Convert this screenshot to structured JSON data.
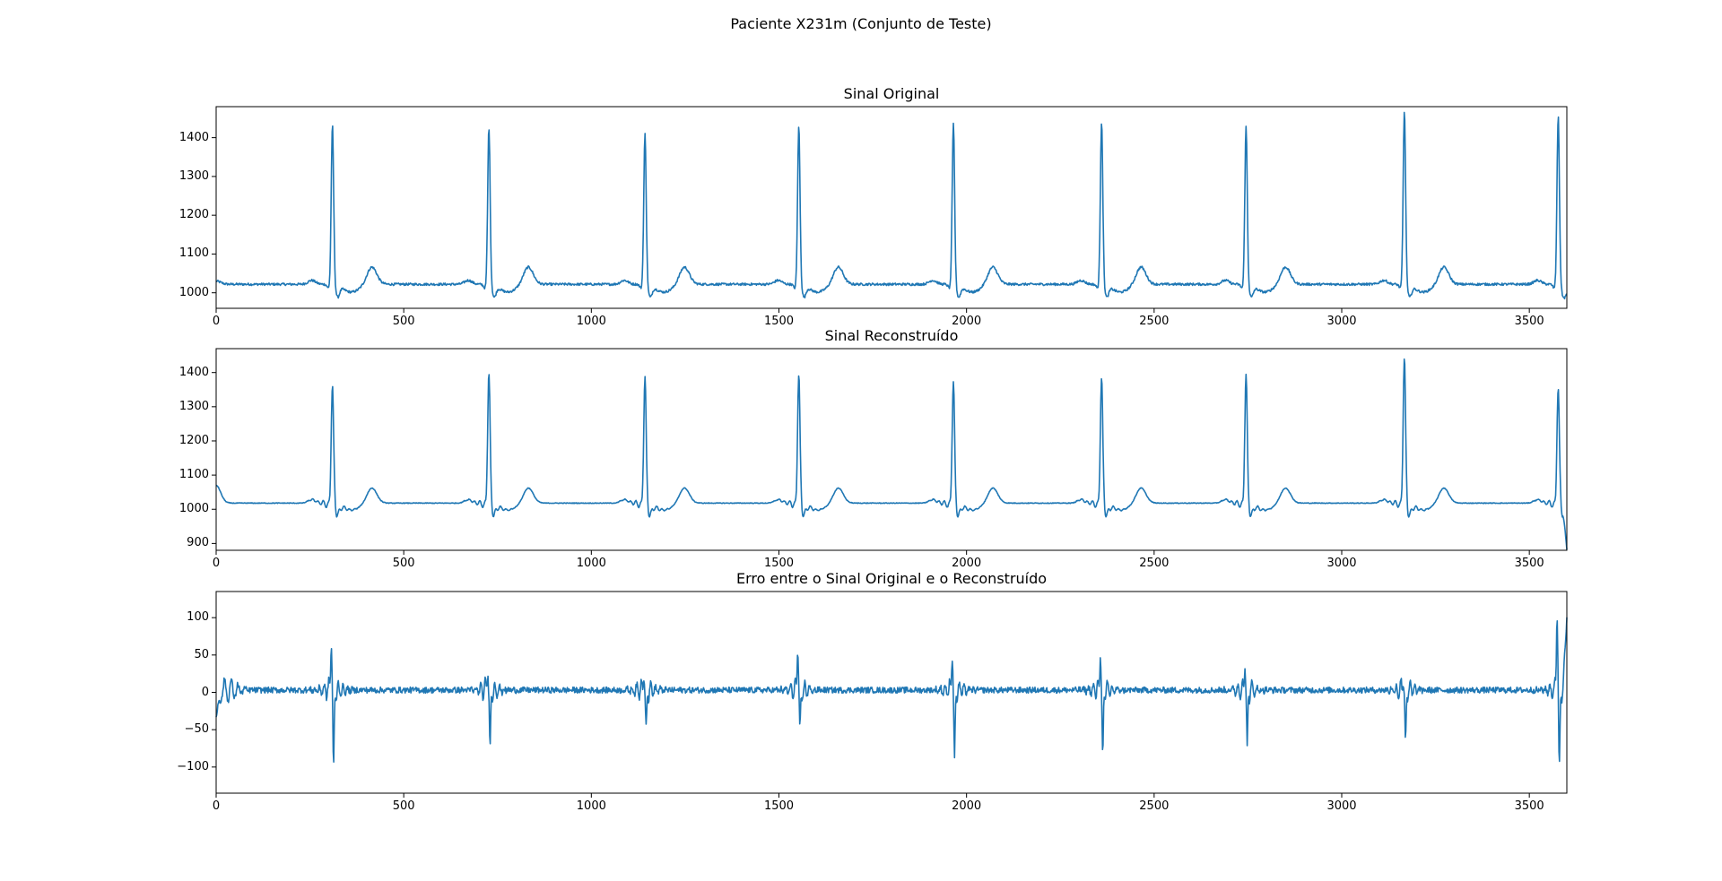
{
  "figure": {
    "suptitle": "Paciente X231m (Conjunto de Teste)",
    "line_color": "#1f77b4"
  },
  "chart_data": [
    {
      "type": "line",
      "title": "Sinal Original",
      "xlabel": "",
      "ylabel": "",
      "xlim": [
        0,
        3600
      ],
      "ylim": [
        960,
        1480
      ],
      "xticks": [
        0,
        500,
        1000,
        1500,
        2000,
        2500,
        3000,
        3500
      ],
      "yticks": [
        1000,
        1100,
        1200,
        1300,
        1400
      ],
      "grid": false,
      "beats": [
        {
          "r_x": 310,
          "r_peak": 1435
        },
        {
          "r_x": 727,
          "r_peak": 1430
        },
        {
          "r_x": 1143,
          "r_peak": 1412
        },
        {
          "r_x": 1553,
          "r_peak": 1432
        },
        {
          "r_x": 1965,
          "r_peak": 1437
        },
        {
          "r_x": 2360,
          "r_peak": 1445
        },
        {
          "r_x": 2745,
          "r_peak": 1430
        },
        {
          "r_x": 3167,
          "r_peak": 1472
        },
        {
          "r_x": 3577,
          "r_peak": 1458
        }
      ],
      "baseline": 1022,
      "t_wave_amplitude": 45,
      "start_value": 1030,
      "end_value": 1010
    },
    {
      "type": "line",
      "title": "Sinal Reconstruído",
      "xlabel": "",
      "ylabel": "",
      "xlim": [
        0,
        3600
      ],
      "ylim": [
        880,
        1470
      ],
      "xticks": [
        0,
        500,
        1000,
        1500,
        2000,
        2500,
        3000,
        3500
      ],
      "yticks": [
        900,
        1000,
        1100,
        1200,
        1300,
        1400
      ],
      "grid": false,
      "beats": [
        {
          "r_x": 310,
          "r_peak": 1365
        },
        {
          "r_x": 727,
          "r_peak": 1402
        },
        {
          "r_x": 1143,
          "r_peak": 1390
        },
        {
          "r_x": 1553,
          "r_peak": 1398
        },
        {
          "r_x": 1965,
          "r_peak": 1375
        },
        {
          "r_x": 2360,
          "r_peak": 1388
        },
        {
          "r_x": 2745,
          "r_peak": 1397
        },
        {
          "r_x": 3167,
          "r_peak": 1447
        },
        {
          "r_x": 3577,
          "r_peak": 1357
        }
      ],
      "baseline": 1018,
      "t_wave_amplitude": 45,
      "start_value": 1070,
      "end_value": 903
    },
    {
      "type": "line",
      "title": "Erro entre o Sinal Original e o Reconstruído",
      "xlabel": "",
      "ylabel": "",
      "xlim": [
        0,
        3600
      ],
      "ylim": [
        -135,
        135
      ],
      "xticks": [
        0,
        500,
        1000,
        1500,
        2000,
        2500,
        3000,
        3500
      ],
      "yticks": [
        -100,
        -50,
        0,
        50,
        100
      ],
      "grid": false,
      "beats": [
        {
          "r_x": 310,
          "pos_peak": 80,
          "neg_peak": -124
        },
        {
          "r_x": 727,
          "pos_peak": 38,
          "neg_peak": -93
        },
        {
          "r_x": 1143,
          "pos_peak": 37,
          "neg_peak": -68
        },
        {
          "r_x": 1553,
          "pos_peak": 72,
          "neg_peak": -72
        },
        {
          "r_x": 1965,
          "pos_peak": 63,
          "neg_peak": -111
        },
        {
          "r_x": 2360,
          "pos_peak": 64,
          "neg_peak": -108
        },
        {
          "r_x": 2745,
          "pos_peak": 47,
          "neg_peak": -92
        },
        {
          "r_x": 3167,
          "pos_peak": 28,
          "neg_peak": -88
        },
        {
          "r_x": 3577,
          "pos_peak": 122,
          "neg_peak": -121
        }
      ],
      "baseline": 3,
      "start_value": -35,
      "end_value": 110
    }
  ]
}
